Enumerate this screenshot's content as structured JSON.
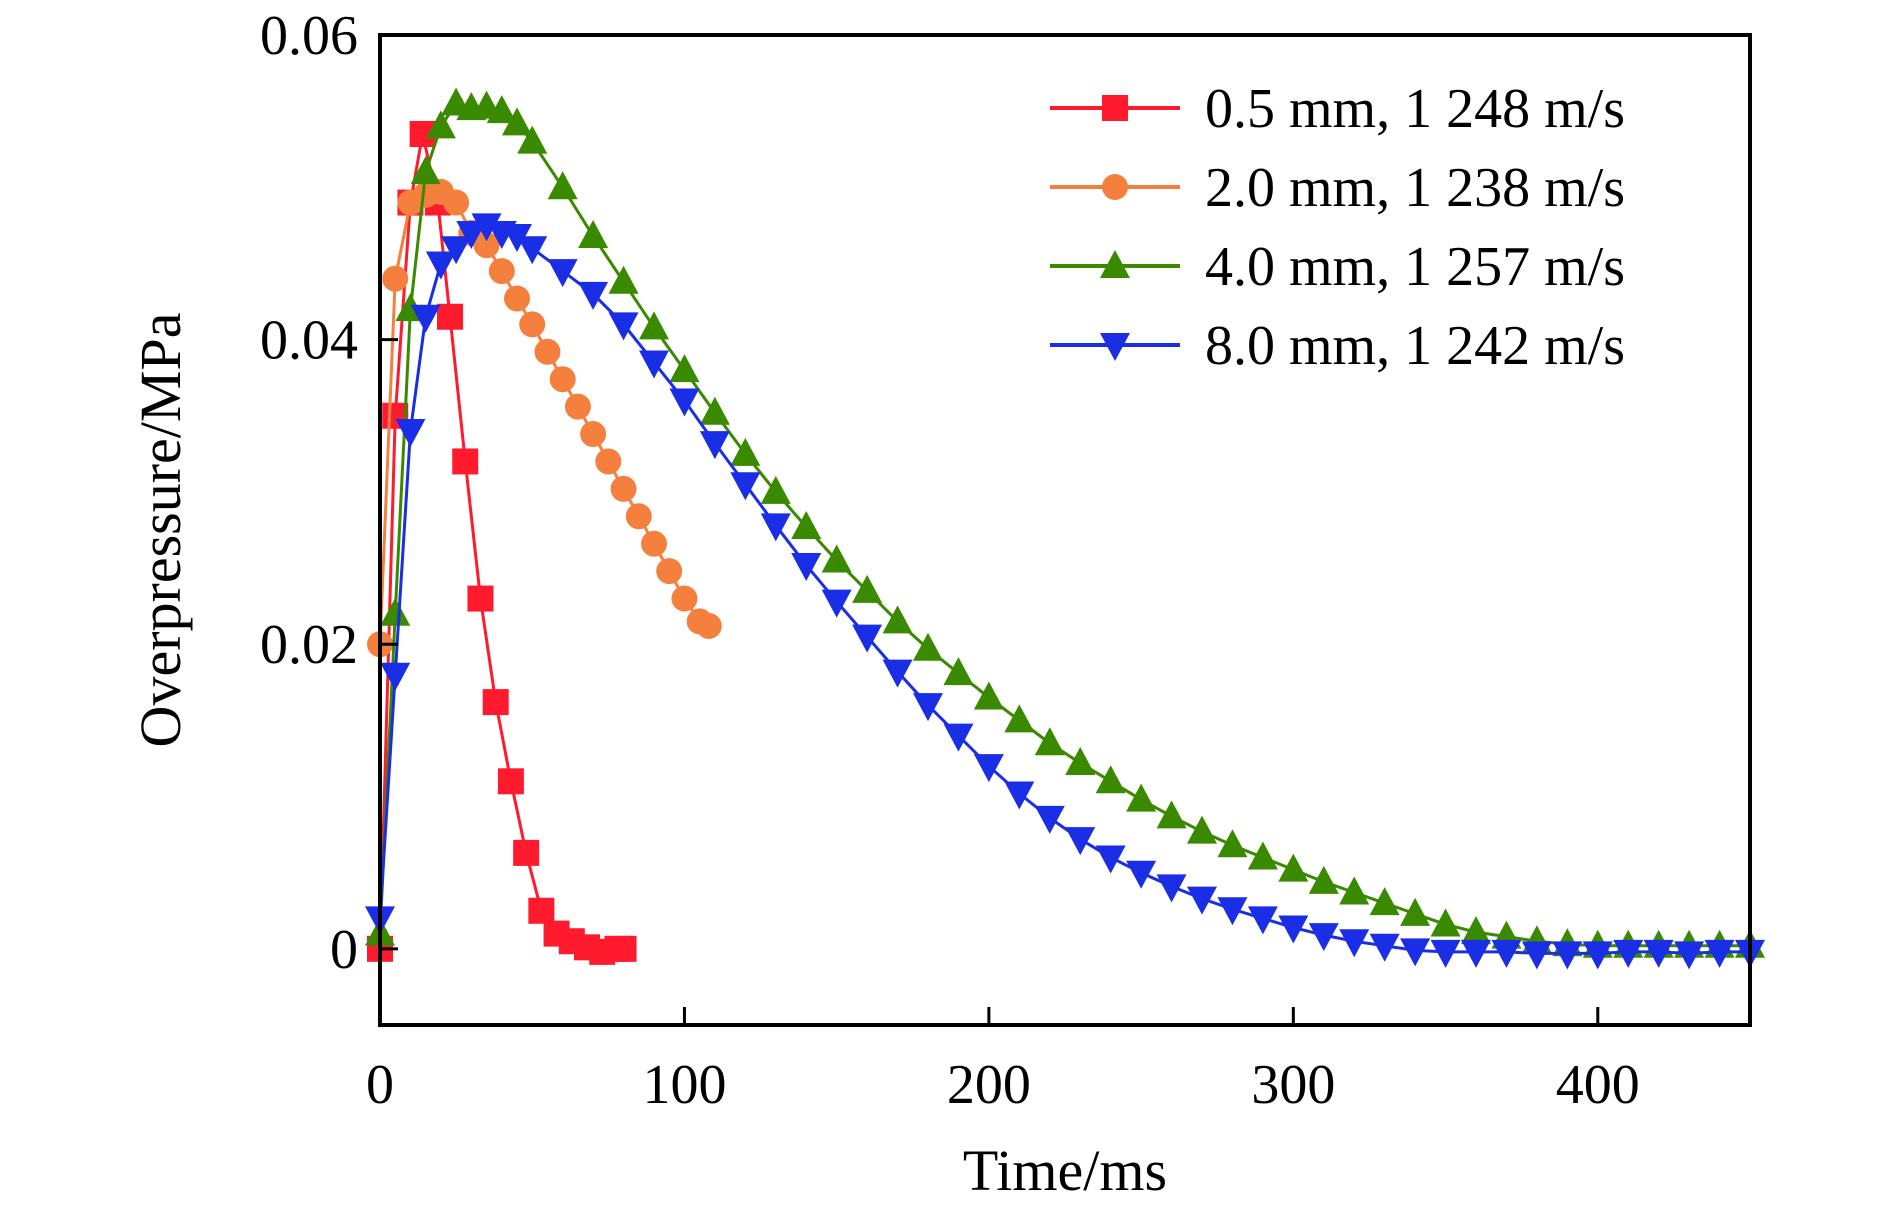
{
  "chart_data": {
    "type": "line",
    "title": "",
    "xlabel": "Time/ms",
    "ylabel": "Overpressure/MPa",
    "xlim": [
      0,
      450
    ],
    "ylim": [
      -0.005,
      0.06
    ],
    "xticks": [
      0,
      100,
      200,
      300,
      400
    ],
    "yticks": [
      0,
      0.02,
      0.04,
      0.06
    ],
    "xtick_labels": [
      "0",
      "100",
      "200",
      "300",
      "400"
    ],
    "ytick_labels": [
      "0",
      "0.02",
      "0.04",
      "0.06"
    ],
    "legend_position": "top-right",
    "grid": false,
    "series": [
      {
        "name": "0.5 mm, 1 248 m/s",
        "color": "#ff1a2e",
        "marker": "square",
        "x": [
          0,
          5,
          10,
          14,
          19,
          23,
          28,
          33,
          38,
          43,
          48,
          53,
          58,
          63,
          68,
          73,
          78,
          80
        ],
        "y": [
          0.0,
          0.035,
          0.049,
          0.0535,
          0.049,
          0.0415,
          0.032,
          0.023,
          0.0162,
          0.011,
          0.0063,
          0.0025,
          0.001,
          0.0005,
          0.0001,
          -0.0002,
          0.0,
          0.0
        ]
      },
      {
        "name": "2.0 mm, 1 238 m/s",
        "color": "#f5803e",
        "marker": "circle",
        "x": [
          0,
          5,
          10,
          15,
          20,
          25,
          30,
          35,
          40,
          45,
          50,
          55,
          60,
          65,
          70,
          75,
          80,
          85,
          90,
          95,
          100,
          105,
          108
        ],
        "y": [
          0.02,
          0.044,
          0.049,
          0.0495,
          0.0497,
          0.049,
          0.047,
          0.0462,
          0.0445,
          0.0427,
          0.041,
          0.0392,
          0.0374,
          0.0356,
          0.0338,
          0.032,
          0.0302,
          0.0284,
          0.0266,
          0.0248,
          0.023,
          0.0215,
          0.0212
        ]
      },
      {
        "name": "4.0 mm, 1 257 m/s",
        "color": "#3a8a00",
        "marker": "triangle-up",
        "x": [
          0,
          5,
          10,
          15,
          20,
          25,
          30,
          35,
          40,
          45,
          50,
          60,
          70,
          80,
          90,
          100,
          110,
          120,
          130,
          140,
          150,
          160,
          170,
          180,
          190,
          200,
          210,
          220,
          230,
          240,
          250,
          260,
          270,
          280,
          290,
          300,
          310,
          320,
          330,
          340,
          350,
          360,
          370,
          380,
          390,
          400,
          410,
          420,
          430,
          440,
          450
        ],
        "y": [
          0.001,
          0.022,
          0.042,
          0.051,
          0.054,
          0.0555,
          0.0552,
          0.0553,
          0.055,
          0.0542,
          0.053,
          0.05,
          0.0468,
          0.0438,
          0.0408,
          0.038,
          0.0352,
          0.0325,
          0.03,
          0.0277,
          0.0255,
          0.0235,
          0.0215,
          0.0197,
          0.0181,
          0.0165,
          0.015,
          0.0135,
          0.0122,
          0.011,
          0.0098,
          0.0087,
          0.0077,
          0.0068,
          0.006,
          0.0052,
          0.0044,
          0.0037,
          0.003,
          0.0023,
          0.0016,
          0.0011,
          0.0008,
          0.0005,
          0.0003,
          0.0002,
          0.0002,
          0.0002,
          0.0002,
          0.0002,
          0.0002
        ]
      },
      {
        "name": "8.0 mm, 1 242 m/s",
        "color": "#1a2ee6",
        "marker": "triangle-down",
        "x": [
          0,
          5,
          10,
          15,
          20,
          25,
          30,
          35,
          40,
          45,
          50,
          60,
          70,
          80,
          90,
          100,
          110,
          120,
          130,
          140,
          150,
          160,
          170,
          180,
          190,
          200,
          210,
          220,
          230,
          240,
          250,
          260,
          270,
          280,
          290,
          300,
          310,
          320,
          330,
          340,
          350,
          360,
          370,
          380,
          390,
          400,
          410,
          420,
          430,
          440,
          450
        ],
        "y": [
          0.002,
          0.018,
          0.034,
          0.0415,
          0.045,
          0.046,
          0.047,
          0.0475,
          0.047,
          0.0468,
          0.046,
          0.0445,
          0.043,
          0.041,
          0.0385,
          0.036,
          0.0332,
          0.0305,
          0.0278,
          0.0252,
          0.0228,
          0.0205,
          0.0182,
          0.016,
          0.014,
          0.012,
          0.0102,
          0.0086,
          0.0072,
          0.006,
          0.005,
          0.0041,
          0.0033,
          0.0026,
          0.002,
          0.0014,
          0.0009,
          0.0005,
          0.0002,
          -0.0001,
          -0.0002,
          -0.0002,
          -0.0002,
          -0.0003,
          -0.0003,
          -0.0003,
          -0.0002,
          -0.0002,
          -0.0003,
          -0.0002,
          -0.0002
        ]
      }
    ]
  }
}
